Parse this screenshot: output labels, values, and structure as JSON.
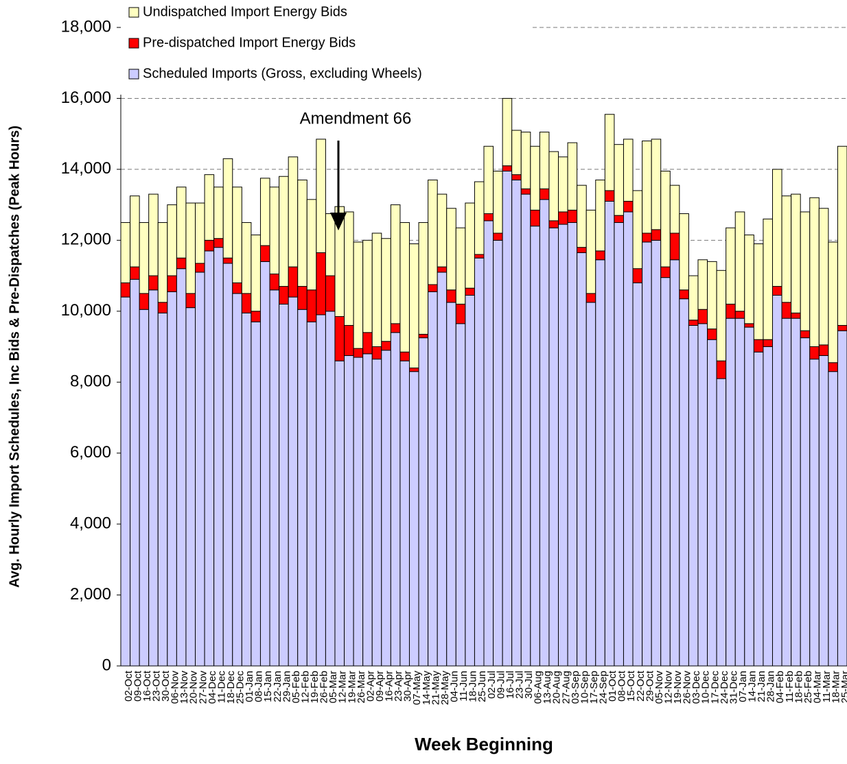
{
  "chart_data": {
    "type": "stacked_bar",
    "y_label": "Avg. Hourly Import Schedules, Inc Bids & Pre-Dispatches (Peak Hours)",
    "x_label": "Week Beginning",
    "annotation": "Amendment 66",
    "categories": [
      "02-Oct",
      "09-Oct",
      "16-Oct",
      "23-Oct",
      "30-Oct",
      "06-Nov",
      "13-Nov",
      "20-Nov",
      "27-Nov",
      "04-Dec",
      "11-Dec",
      "18-Dec",
      "25-Dec",
      "01-Jan",
      "08-Jan",
      "15-Jan",
      "22-Jan",
      "29-Jan",
      "05-Feb",
      "12-Feb",
      "19-Feb",
      "26-Feb",
      "05-Mar",
      "12-Mar",
      "19-Mar",
      "26-Mar",
      "02-Apr",
      "09-Apr",
      "16-Apr",
      "23-Apr",
      "30-Apr",
      "07-May",
      "14-May",
      "21-May",
      "28-May",
      "04-Jun",
      "11-Jun",
      "18-Jun",
      "25-Jun",
      "02-Jul",
      "09-Jul",
      "16-Jul",
      "23-Jul",
      "30-Jul",
      "06-Aug",
      "13-Aug",
      "20-Aug",
      "27-Aug",
      "03-Sep",
      "10-Sep",
      "17-Sep",
      "24-Sep",
      "01-Oct",
      "08-Oct",
      "15-Oct",
      "22-Oct",
      "29-Oct",
      "05-Nov",
      "12-Nov",
      "19-Nov",
      "26-Nov",
      "03-Dec",
      "10-Dec",
      "17-Dec",
      "24-Dec",
      "31-Dec",
      "07-Jan",
      "14-Jan",
      "21-Jan",
      "28-Jan",
      "04-Feb",
      "11-Feb",
      "18-Feb",
      "25-Feb",
      "04-Mar",
      "11-Mar",
      "18-Mar",
      "25-Mar"
    ],
    "series": [
      {
        "name": "Scheduled Imports (Gross, excluding Wheels)",
        "color": "#ccccff",
        "values": [
          10400,
          10900,
          10050,
          10600,
          9950,
          10550,
          11200,
          10100,
          11100,
          11700,
          11800,
          11350,
          10500,
          9950,
          9700,
          11400,
          10600,
          10200,
          10400,
          10050,
          9700,
          9900,
          10000,
          8600,
          8750,
          8700,
          8800,
          8650,
          8900,
          9400,
          8600,
          8300,
          9250,
          10550,
          11100,
          10250,
          9650,
          10450,
          11500,
          12550,
          12000,
          13950,
          13700,
          13300,
          12400,
          13150,
          12350,
          12450,
          12500,
          11650,
          10250,
          11450,
          13100,
          12500,
          12800,
          10800,
          11950,
          12000,
          10950,
          11450,
          10350,
          9600,
          9650,
          9200,
          8100,
          9800,
          9800,
          9550,
          8850,
          9000,
          10450,
          9800,
          9800,
          9250,
          8650,
          8750,
          8300,
          9450
        ]
      },
      {
        "name": "Pre-dispatched Import Energy Bids",
        "color": "#ff0000",
        "values": [
          400,
          350,
          450,
          400,
          300,
          450,
          300,
          400,
          250,
          300,
          250,
          150,
          300,
          550,
          300,
          450,
          450,
          500,
          850,
          650,
          900,
          1750,
          1000,
          1250,
          850,
          250,
          600,
          350,
          250,
          250,
          250,
          100,
          100,
          200,
          150,
          350,
          550,
          200,
          100,
          200,
          200,
          150,
          150,
          150,
          450,
          300,
          200,
          350,
          350,
          150,
          250,
          250,
          300,
          200,
          300,
          400,
          250,
          300,
          300,
          750,
          250,
          150,
          400,
          300,
          500,
          400,
          200,
          100,
          350,
          200,
          250,
          450,
          150,
          200,
          350,
          300,
          250,
          150
        ]
      },
      {
        "name": "Undispatched Import Energy Bids",
        "color": "#ffffc0",
        "values": [
          1700,
          2000,
          2000,
          2300,
          2250,
          2000,
          2000,
          2550,
          1700,
          1850,
          1450,
          2800,
          2700,
          2000,
          2150,
          1900,
          2450,
          3100,
          3100,
          3000,
          2550,
          3200,
          1750,
          3100,
          3200,
          3000,
          2600,
          3200,
          2900,
          3350,
          3650,
          3500,
          3150,
          2950,
          2050,
          2300,
          2150,
          2400,
          2050,
          1900,
          1750,
          1900,
          1250,
          1600,
          1800,
          1600,
          1950,
          1550,
          1900,
          1750,
          2350,
          2000,
          2150,
          2000,
          1750,
          2200,
          2600,
          2550,
          2700,
          1350,
          2150,
          1250,
          1400,
          1900,
          2550,
          2150,
          2800,
          2500,
          2700,
          3400,
          3300,
          3000,
          3350,
          3350,
          4200,
          3850,
          3400,
          5050
        ]
      }
    ],
    "ylim": [
      0,
      18000
    ],
    "yticks": [
      0,
      {
        "value": 2000,
        "label": "2,000"
      },
      {
        "value": 4000,
        "label": "4,000"
      },
      {
        "value": 6000,
        "label": "6,000"
      },
      {
        "value": 8000,
        "label": "8,000"
      },
      {
        "value": 10000,
        "label": "10,000"
      },
      {
        "value": 12000,
        "label": "12,000"
      },
      {
        "value": 14000,
        "label": "14,000"
      },
      {
        "value": 16000,
        "label": "16,000"
      },
      {
        "value": 18000,
        "label": "18,000"
      }
    ],
    "grid": true,
    "legend": "top-left"
  }
}
